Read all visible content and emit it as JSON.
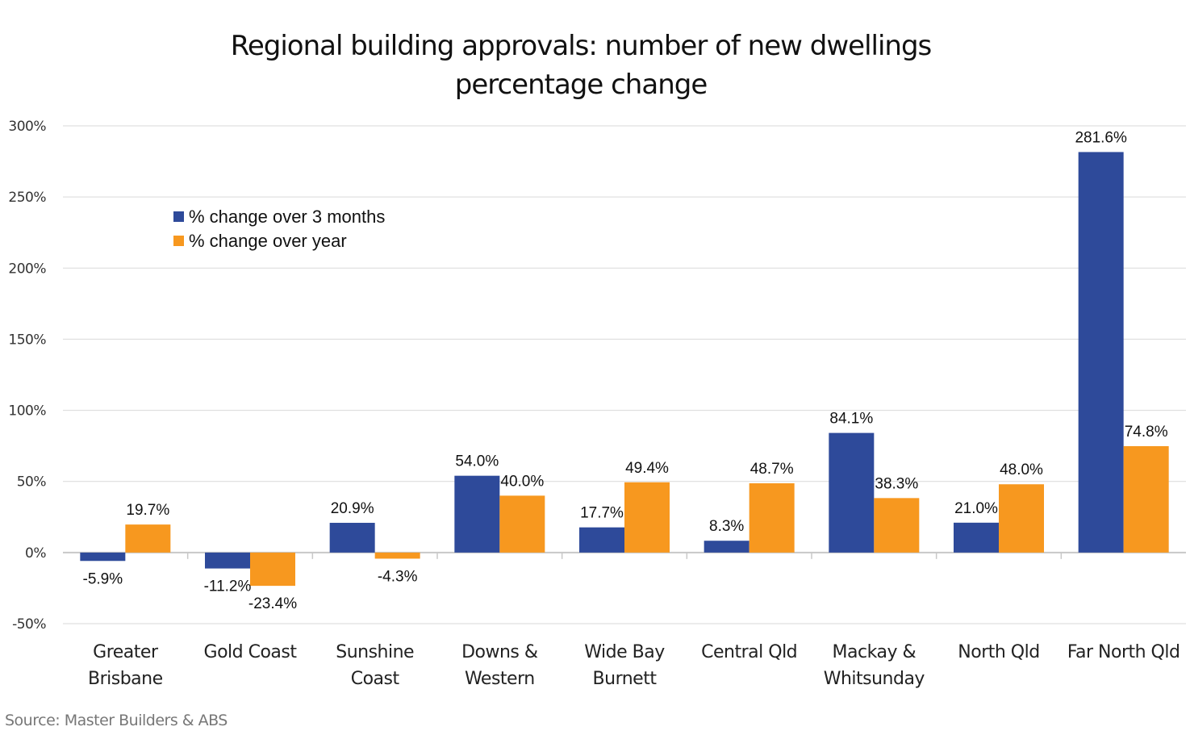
{
  "chart_data": {
    "type": "bar",
    "title": [
      "Regional building approvals: number of new dwellings",
      "percentage change"
    ],
    "categories": [
      [
        "Greater",
        "Brisbane"
      ],
      [
        "Gold Coast"
      ],
      [
        "Sunshine",
        "Coast"
      ],
      [
        "Downs &",
        "Western"
      ],
      [
        "Wide Bay",
        "Burnett"
      ],
      [
        "Central Qld"
      ],
      [
        "Mackay &",
        "Whitsunday"
      ],
      [
        "North Qld"
      ],
      [
        "Far North Qld"
      ]
    ],
    "series": [
      {
        "name": "% change over 3 months",
        "color": "#2E4A9A",
        "values": [
          -5.9,
          -11.2,
          20.9,
          54.0,
          17.7,
          8.3,
          84.1,
          21.0,
          281.6
        ]
      },
      {
        "name": "% change over year",
        "color": "#F7981F",
        "values": [
          19.7,
          -23.4,
          -4.3,
          40.0,
          49.4,
          48.7,
          38.3,
          48.0,
          74.8
        ]
      }
    ],
    "ylim": [
      -50,
      300
    ],
    "yticks": [
      -50,
      0,
      50,
      100,
      150,
      200,
      250,
      300
    ],
    "ytick_labels": [
      "-50%",
      "0%",
      "50%",
      "100%",
      "150%",
      "200%",
      "250%",
      "300%"
    ],
    "grid": true,
    "legend_position": "top-left",
    "source": "Source:  Master Builders & ABS"
  }
}
